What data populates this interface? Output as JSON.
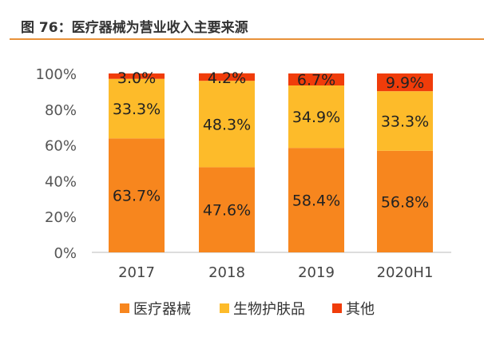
{
  "title": "图 76：医疗器械为营业收入主要来源",
  "chart_data": {
    "type": "bar",
    "stacked": true,
    "categories": [
      "2017",
      "2018",
      "2019",
      "2020H1"
    ],
    "series": [
      {
        "name": "医疗器械",
        "values": [
          63.7,
          47.6,
          58.4,
          56.8
        ],
        "labels": [
          "63.7%",
          "47.6%",
          "58.4%",
          "56.8%"
        ],
        "color": "#F7861E"
      },
      {
        "name": "生物护肤品",
        "values": [
          33.3,
          48.3,
          34.9,
          33.3
        ],
        "labels": [
          "33.3%",
          "48.3%",
          "34.9%",
          "33.3%"
        ],
        "color": "#FDBB2A"
      },
      {
        "name": "其他",
        "values": [
          3.0,
          4.2,
          6.7,
          9.9
        ],
        "labels": [
          "3.0%",
          "4.2%",
          "6.7%",
          "9.9%"
        ],
        "color": "#F03C0A"
      }
    ],
    "ylim": [
      0,
      100
    ],
    "yticks": [
      "0%",
      "20%",
      "40%",
      "60%",
      "80%",
      "100%"
    ],
    "legend": "bottom",
    "grid": false
  }
}
